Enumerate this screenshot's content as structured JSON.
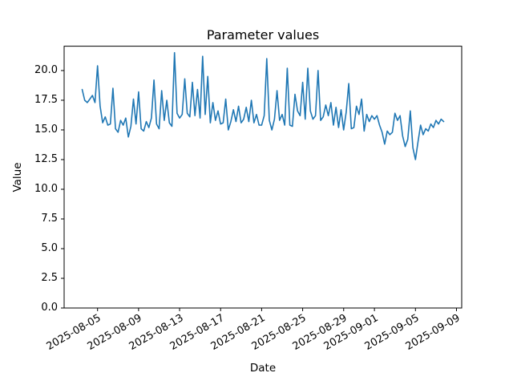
{
  "figure": {
    "bg_color": "#ffffff"
  },
  "line_color": "#1f77b4",
  "chart_data": {
    "type": "line",
    "title": "Parameter values",
    "xlabel": "Date",
    "ylabel": "Value",
    "legend": "none",
    "grid": false,
    "x_day0": "2025-08-03",
    "x_start_day": 0.5,
    "x_step_days": 0.25,
    "x_sample_interval_hours": 6,
    "xlim_days": [
      -1.26,
      37.51
    ],
    "ylim": [
      0,
      22.05
    ],
    "x_ticks": [
      {
        "label": "2025-08-05",
        "day": 2
      },
      {
        "label": "2025-08-09",
        "day": 6
      },
      {
        "label": "2025-08-13",
        "day": 10
      },
      {
        "label": "2025-08-17",
        "day": 14
      },
      {
        "label": "2025-08-21",
        "day": 18
      },
      {
        "label": "2025-08-25",
        "day": 22
      },
      {
        "label": "2025-08-29",
        "day": 26
      },
      {
        "label": "2025-09-01",
        "day": 29
      },
      {
        "label": "2025-09-05",
        "day": 33
      },
      {
        "label": "2025-09-09",
        "day": 37
      }
    ],
    "y_ticks": [
      {
        "label": "0.0",
        "value": 0
      },
      {
        "label": "2.5",
        "value": 2.5
      },
      {
        "label": "5.0",
        "value": 5
      },
      {
        "label": "7.5",
        "value": 7.5
      },
      {
        "label": "10.0",
        "value": 10
      },
      {
        "label": "12.5",
        "value": 12.5
      },
      {
        "label": "15.0",
        "value": 15
      },
      {
        "label": "17.5",
        "value": 17.5
      },
      {
        "label": "20.0",
        "value": 20
      }
    ],
    "values": [
      18.4,
      17.5,
      17.3,
      17.6,
      17.9,
      17.3,
      20.4,
      17.0,
      15.6,
      16.1,
      15.4,
      15.5,
      18.5,
      15.1,
      14.8,
      15.8,
      15.4,
      16.0,
      14.4,
      15.3,
      17.6,
      15.5,
      18.2,
      15.1,
      14.9,
      15.7,
      15.2,
      16.0,
      19.2,
      15.5,
      15.1,
      18.3,
      15.8,
      17.5,
      15.6,
      15.3,
      21.5,
      16.4,
      16.0,
      16.3,
      19.3,
      16.4,
      16.1,
      19.0,
      16.2,
      18.4,
      16.0,
      21.2,
      16.3,
      19.5,
      15.6,
      17.3,
      15.8,
      16.6,
      15.5,
      15.6,
      17.6,
      15.0,
      15.7,
      16.7,
      15.7,
      17.0,
      15.6,
      15.9,
      16.9,
      15.7,
      17.5,
      15.6,
      16.3,
      15.4,
      15.4,
      16.2,
      21.0,
      15.8,
      15.0,
      15.9,
      18.3,
      15.8,
      16.3,
      15.4,
      20.2,
      15.4,
      15.3,
      18.0,
      16.6,
      16.2,
      19.0,
      15.9,
      20.2,
      16.6,
      15.9,
      16.2,
      20.0,
      15.8,
      16.1,
      17.1,
      16.2,
      17.3,
      15.4,
      16.9,
      15.2,
      16.7,
      15.0,
      16.5,
      18.9,
      15.1,
      15.2,
      17.0,
      16.3,
      17.6,
      14.9,
      16.3,
      15.7,
      16.2,
      15.9,
      16.2,
      15.4,
      14.8,
      13.8,
      14.9,
      14.6,
      14.8,
      16.4,
      15.8,
      16.2,
      14.5,
      13.6,
      14.2,
      16.6,
      13.5,
      12.5,
      14.0,
      15.4,
      14.6,
      15.1,
      14.9,
      15.5,
      15.2,
      15.8,
      15.5,
      15.9,
      15.7
    ]
  }
}
